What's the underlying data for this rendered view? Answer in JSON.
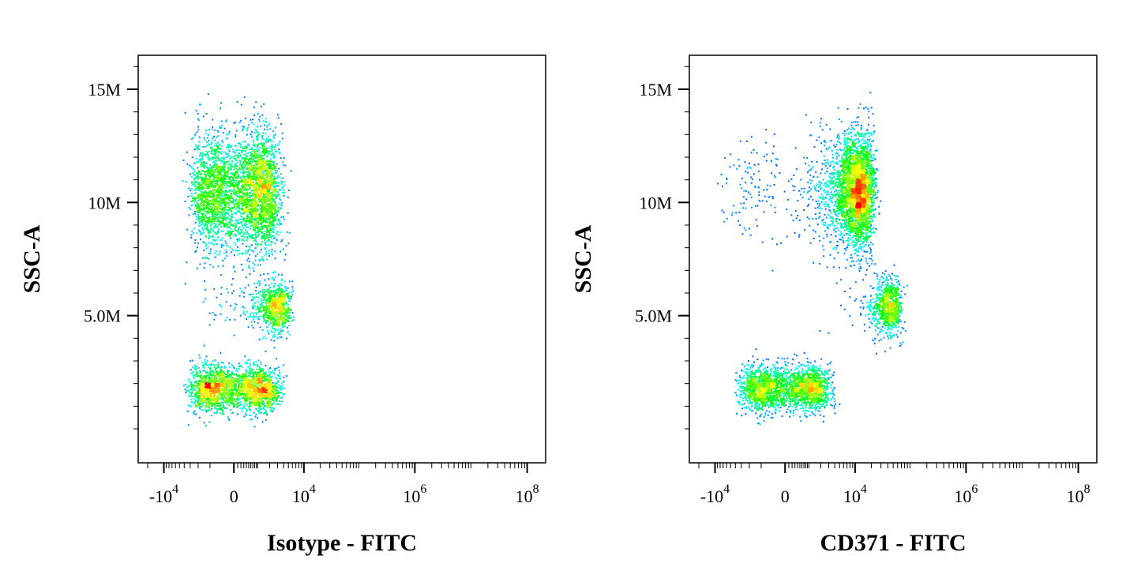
{
  "chart_data": [
    {
      "type": "scatter",
      "subtype": "flow-cytometry-density-dot-plot",
      "xlabel": "Isotype - FITC",
      "ylabel": "SSC-A",
      "x_scale": "biexponential",
      "x_ticks": [
        {
          "value": -10000,
          "base": "-10",
          "exp": "4"
        },
        {
          "value": 0,
          "base": "0",
          "exp": ""
        },
        {
          "value": 10000,
          "base": "10",
          "exp": "4"
        },
        {
          "value": 1000000,
          "base": "10",
          "exp": "6"
        },
        {
          "value": 100000000,
          "base": "10",
          "exp": "8"
        }
      ],
      "y_ticks": [
        {
          "value": 5000000,
          "label": "5.0M"
        },
        {
          "value": 10000000,
          "label": "10M"
        },
        {
          "value": 15000000,
          "label": "15M"
        }
      ],
      "ylim": [
        -1500000,
        16500000
      ],
      "populations": [
        {
          "name_hint": "high-SSC cluster",
          "x_center": 300,
          "ssc_center": 10500000,
          "x_spread": 1500,
          "ssc_spread": 2400000,
          "fraction": 0.55
        },
        {
          "name_hint": "mid-SSC cluster",
          "x_center": 2500,
          "ssc_center": 5400000,
          "x_spread": 1500,
          "ssc_spread": 1000000,
          "fraction": 0.12
        },
        {
          "name_hint": "low-SSC cluster",
          "x_center": 0,
          "ssc_center": 1800000,
          "x_spread": 1500,
          "ssc_spread": 900000,
          "fraction": 0.33
        }
      ],
      "colormap": [
        "#0000ff",
        "#00ffff",
        "#00ff00",
        "#ffff00",
        "#ff0000"
      ]
    },
    {
      "type": "scatter",
      "subtype": "flow-cytometry-density-dot-plot",
      "xlabel": "CD371 - FITC",
      "ylabel": "SSC-A",
      "x_scale": "biexponential",
      "x_ticks": [
        {
          "value": -10000,
          "base": "-10",
          "exp": "4"
        },
        {
          "value": 0,
          "base": "0",
          "exp": ""
        },
        {
          "value": 10000,
          "base": "10",
          "exp": "4"
        },
        {
          "value": 1000000,
          "base": "10",
          "exp": "6"
        },
        {
          "value": 100000000,
          "base": "10",
          "exp": "8"
        }
      ],
      "y_ticks": [
        {
          "value": 5000000,
          "label": "5.0M"
        },
        {
          "value": 10000000,
          "label": "10M"
        },
        {
          "value": 15000000,
          "label": "15M"
        }
      ],
      "ylim": [
        -1500000,
        16500000
      ],
      "populations": [
        {
          "name_hint": "high-SSC cluster",
          "x_center": 10000,
          "ssc_center": 10500000,
          "x_spread": 6000,
          "ssc_spread": 2300000,
          "fraction": 0.52
        },
        {
          "name_hint": "mid-SSC cluster",
          "x_center": 40000,
          "ssc_center": 5400000,
          "x_spread": 15000,
          "ssc_spread": 1100000,
          "fraction": 0.13
        },
        {
          "name_hint": "low-SSC cluster",
          "x_center": 0,
          "ssc_center": 1800000,
          "x_spread": 1500,
          "ssc_spread": 900000,
          "fraction": 0.35
        }
      ],
      "colormap": [
        "#0000ff",
        "#00ffff",
        "#00ff00",
        "#ffff00",
        "#ff0000"
      ]
    }
  ]
}
